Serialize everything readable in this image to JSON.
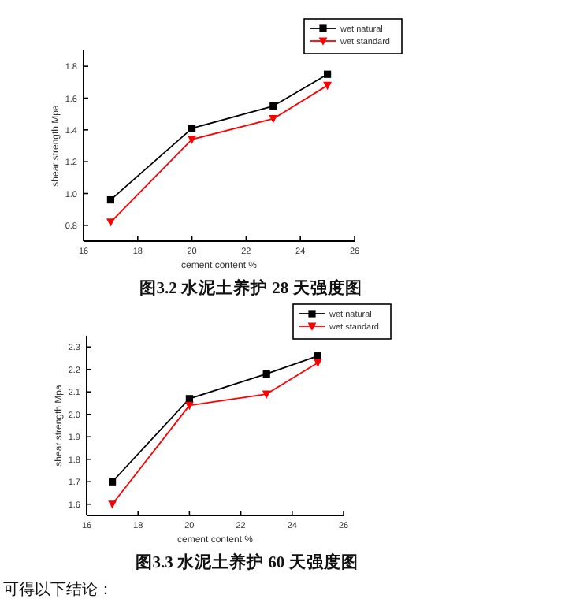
{
  "chart_data": [
    {
      "type": "line",
      "title": "图3.2  水泥土养护 28 天强度图",
      "xlabel": "cement content %",
      "ylabel": "shear strength Mpa",
      "x": [
        17,
        20,
        23,
        25
      ],
      "xlim": [
        16,
        26
      ],
      "xticks": [
        16,
        18,
        20,
        22,
        24,
        26
      ],
      "ylim": [
        0.7,
        1.9
      ],
      "yticks": [
        0.8,
        {
          "value": 1.0,
          "label": "1.0"
        },
        1.2,
        1.4,
        1.6,
        1.8
      ],
      "legend": "top right",
      "grid": false,
      "series": [
        {
          "name": "wet natural",
          "color": "#000000",
          "marker": "square",
          "values": [
            0.96,
            1.41,
            1.55,
            1.75
          ]
        },
        {
          "name": "wet standard",
          "color": "#ff0000",
          "marker": "triangle",
          "values": [
            0.82,
            1.34,
            1.47,
            1.68
          ]
        }
      ]
    },
    {
      "type": "line",
      "title": "图3.3  水泥土养护 60 天强度图",
      "xlabel": "cement content %",
      "ylabel": "shear strength Mpa",
      "x": [
        17,
        20,
        23,
        25
      ],
      "xlim": [
        16,
        26
      ],
      "xticks": [
        16,
        18,
        20,
        22,
        24,
        26
      ],
      "ylim": [
        1.55,
        2.35
      ],
      "yticks": [
        1.6,
        1.7,
        1.8,
        1.9,
        {
          "value": 2.0,
          "label": "2.0"
        },
        2.1,
        2.2,
        2.3
      ],
      "legend": "top right",
      "grid": false,
      "annotations": [
        "可得以下结论："
      ],
      "series": [
        {
          "name": "wet natural",
          "color": "#000000",
          "marker": "square",
          "values": [
            1.7,
            2.07,
            2.18,
            2.26
          ]
        },
        {
          "name": "wet standard",
          "color": "#ff0000",
          "marker": "triangle",
          "values": [
            1.6,
            2.04,
            2.09,
            2.23
          ]
        }
      ]
    }
  ]
}
